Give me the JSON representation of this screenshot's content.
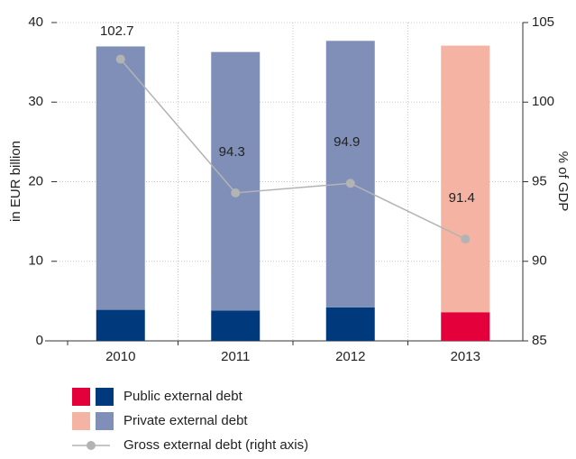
{
  "chart_data": {
    "type": "bar",
    "categories": [
      "2010",
      "2011",
      "2012",
      "2013"
    ],
    "series": [
      {
        "name": "Public external debt",
        "colors": [
          "#003a7d",
          "#003a7d",
          "#003a7d",
          "#e4003b"
        ],
        "values": [
          3.9,
          3.8,
          4.2,
          3.6
        ]
      },
      {
        "name": "Private external debt",
        "colors": [
          "#7f8fb8",
          "#7f8fb8",
          "#7f8fb8",
          "#f5b3a3"
        ],
        "values": [
          33.1,
          32.5,
          33.5,
          33.5
        ]
      },
      {
        "name": "Gross external debt (right axis)",
        "type": "line",
        "axis": "y2",
        "color": "#b3b3b3",
        "values": [
          102.7,
          94.3,
          94.9,
          91.4
        ]
      }
    ],
    "stacked": true,
    "ylabel": "in EUR billion",
    "y2label": "% of GDP",
    "ylim": [
      0,
      40
    ],
    "yticks": [
      0,
      10,
      20,
      30,
      40
    ],
    "y2lim": [
      85,
      105
    ],
    "y2ticks": [
      85,
      90,
      95,
      100,
      105
    ],
    "grid": true,
    "legend": "bottom"
  }
}
